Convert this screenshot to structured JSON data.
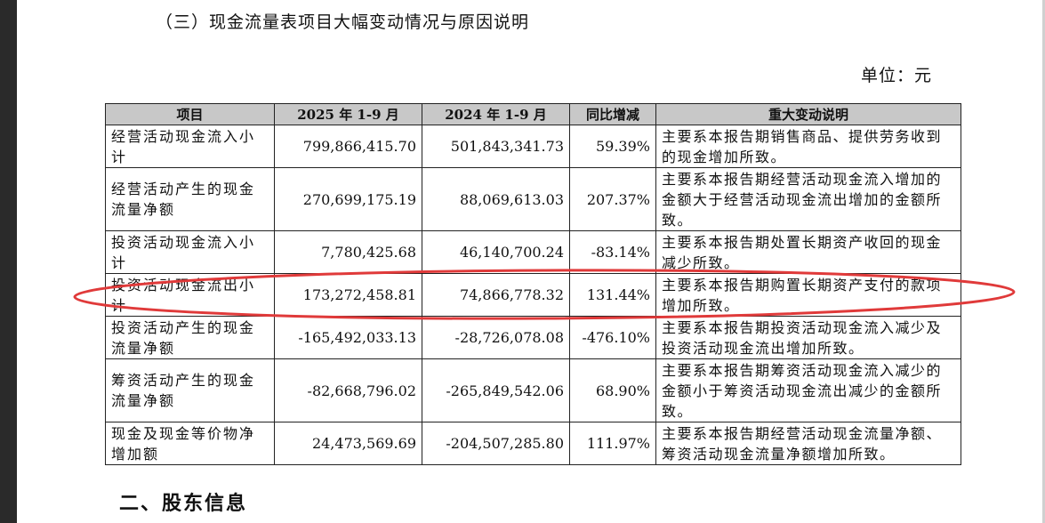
{
  "section_title": "（三）现金流量表项目大幅变动情况与原因说明",
  "unit_label": "单位：元",
  "table": {
    "headers": [
      "项目",
      "2025 年 1-9 月",
      "2024 年 1-9 月",
      "同比增减",
      "重大变动说明"
    ],
    "rows": [
      {
        "item": "经营活动现金流入小计",
        "y2025": "799,866,415.70",
        "y2024": "501,843,341.73",
        "yoy": "59.39%",
        "desc": "主要系本报告期销售商品、提供劳务收到的现金增加所致。"
      },
      {
        "item": "经营活动产生的现金流量净额",
        "y2025": "270,699,175.19",
        "y2024": "88,069,613.03",
        "yoy": "207.37%",
        "desc": "主要系本报告期经营活动现金流入增加的金额大于经营活动现金流出增加的金额所致。"
      },
      {
        "item": "投资活动现金流入小计",
        "y2025": "7,780,425.68",
        "y2024": "46,140,700.24",
        "yoy": "-83.14%",
        "desc": "主要系本报告期处置长期资产收回的现金减少所致。"
      },
      {
        "item": "投资活动现金流出小计",
        "y2025": "173,272,458.81",
        "y2024": "74,866,778.32",
        "yoy": "131.44%",
        "desc": "主要系本报告期购置长期资产支付的款项增加所致。"
      },
      {
        "item": "投资活动产生的现金流量净额",
        "y2025": "-165,492,033.13",
        "y2024": "-28,726,078.08",
        "yoy": "-476.10%",
        "desc": "主要系本报告期投资活动现金流入减少及投资活动现金流出增加所致。"
      },
      {
        "item": "筹资活动产生的现金流量净额",
        "y2025": "-82,668,796.02",
        "y2024": "-265,849,542.06",
        "yoy": "68.90%",
        "desc": "主要系本报告期筹资活动现金流入减少的金额小于筹资活动现金流出减少的金额所致。"
      },
      {
        "item": "现金及现金等价物净增加额",
        "y2025": "24,473,569.69",
        "y2024": "-204,507,285.80",
        "yoy": "111.97%",
        "desc": "主要系本报告期经营活动现金流量净额、筹资活动现金流量净额增加所致。"
      }
    ]
  },
  "heading2": "二、股东信息",
  "colors": {
    "header_bg": "#c8c8c8",
    "annotation": "#e03a3a",
    "border": "#222222"
  }
}
